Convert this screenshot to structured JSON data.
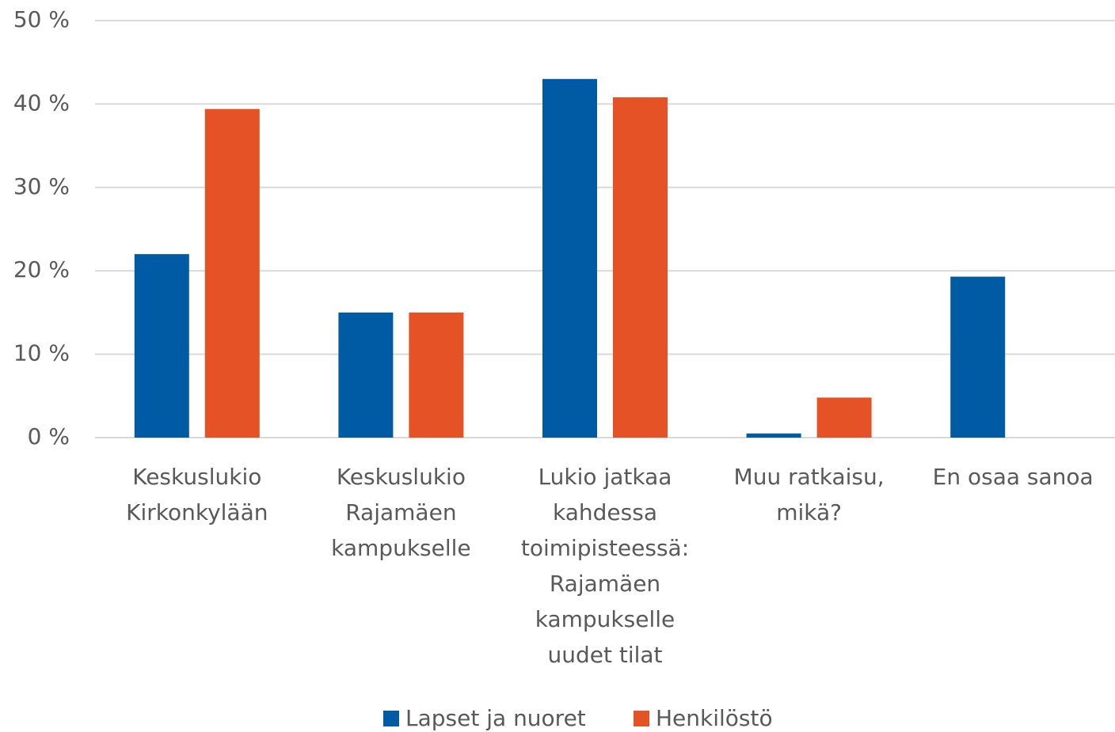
{
  "chart_data": {
    "type": "bar",
    "categories": [
      "Keskuslukio Kirkonkylään",
      "Keskuslukio Rajamäen kampukselle",
      "Lukio jatkaa kahdessa toimipisteessä: Rajamäen kampukselle uudet tilat",
      "Muu ratkaisu, mikä?",
      "En osaa sanoa"
    ],
    "series": [
      {
        "name": "Lapset ja nuoret",
        "color": "#005ba4",
        "values": [
          22,
          15,
          43,
          0.5,
          19.3
        ]
      },
      {
        "name": "Henkilöstö",
        "color": "#e55225",
        "values": [
          39.4,
          15,
          40.8,
          4.8,
          0
        ]
      }
    ],
    "ylim": [
      0,
      50
    ],
    "yticks": [
      {
        "value": 0,
        "label": "0 %"
      },
      {
        "value": 10,
        "label": "10 %"
      },
      {
        "value": 20,
        "label": "20 %"
      },
      {
        "value": 30,
        "label": "30 %"
      },
      {
        "value": 40,
        "label": "40 %"
      },
      {
        "value": 50,
        "label": "50 %"
      }
    ],
    "grid": true,
    "legend": "bottom"
  }
}
